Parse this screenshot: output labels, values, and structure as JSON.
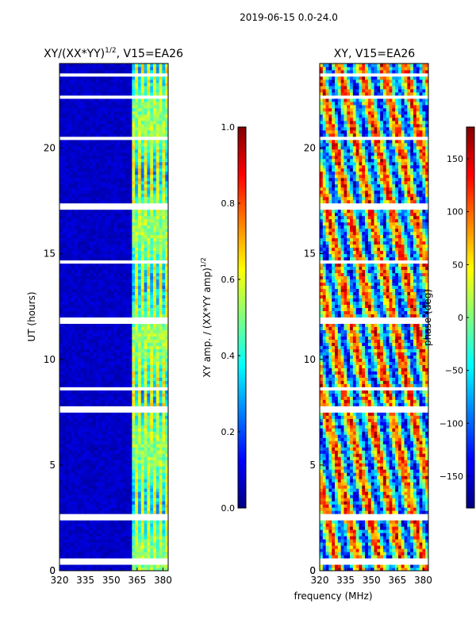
{
  "figure": {
    "suptitle": "2019-06-15 0.0-24.0",
    "xlabel": "frequency (MHz)",
    "ylabel": "UT (hours)"
  },
  "chart_data": [
    {
      "type": "heatmap",
      "title_main": "XY/(XX*YY)",
      "title_sup": "1/2",
      "title_tail": ", V15=EA26",
      "xlabel": "frequency (MHz)",
      "ylabel": "UT (hours)",
      "xlim": [
        320,
        383
      ],
      "ylim": [
        0,
        24
      ],
      "xticks": [
        320,
        335,
        350,
        365,
        380
      ],
      "yticks": [
        0,
        5,
        10,
        15,
        20
      ],
      "colorbar": {
        "label_main": "XY amp. / (XX*YY amp)",
        "label_sup": "1/2",
        "range": [
          0.0,
          1.0
        ],
        "ticks": [
          "0.0",
          "0.2",
          "0.4",
          "0.6",
          "0.8",
          "1.0"
        ],
        "colormap": "jet"
      }
    },
    {
      "type": "heatmap",
      "title": "XY, V15=EA26",
      "xlabel": "frequency (MHz)",
      "xlim": [
        320,
        383
      ],
      "ylim": [
        0,
        24
      ],
      "xticks": [
        320,
        335,
        350,
        365,
        380
      ],
      "yticks": [
        0,
        5,
        10,
        15,
        20
      ],
      "colorbar": {
        "label": "phase (deg)",
        "range": [
          -180,
          180
        ],
        "ticks": [
          "−150",
          "−100",
          "−50",
          "0",
          "50",
          "100",
          "150"
        ],
        "colormap": "jet"
      }
    }
  ]
}
